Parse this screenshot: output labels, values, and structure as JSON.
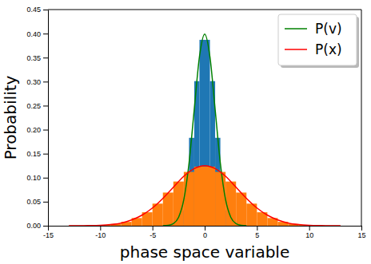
{
  "chart_data": {
    "type": "histogram",
    "xlabel": "phase space variable",
    "ylabel": "Probability",
    "xlim": [
      -15,
      15
    ],
    "ylim": [
      0,
      0.45
    ],
    "xticks": [
      -15,
      -10,
      -5,
      0,
      5,
      10,
      15
    ],
    "yticks": [
      {
        "value": 0,
        "label": "0.00"
      },
      {
        "value": 0.05,
        "label": "0.05"
      },
      {
        "value": 0.1,
        "label": "0.10"
      },
      {
        "value": 0.15,
        "label": "0.15"
      },
      {
        "value": 0.2,
        "label": "0.20"
      },
      {
        "value": 0.25,
        "label": "0.25"
      },
      {
        "value": 0.3,
        "label": "0.30"
      },
      {
        "value": 0.35,
        "label": "0.35"
      },
      {
        "value": 0.4,
        "label": "0.40"
      },
      {
        "value": 0.45,
        "label": "0.45"
      }
    ],
    "legend": "upper right",
    "series": [
      {
        "type": "histogram",
        "color": "#1f77b4",
        "bins": [
          -4,
          -3.5,
          -3,
          -2.5,
          -2,
          -1.5,
          -1,
          -0.5,
          0,
          0.5,
          1,
          1.5,
          2,
          2.5,
          3,
          3.5,
          4
        ],
        "values": [
          0.0004,
          0.002,
          0.009,
          0.032,
          0.086,
          0.183,
          0.301,
          0.387,
          0.387,
          0.301,
          0.183,
          0.086,
          0.032,
          0.009,
          0.002,
          0.0004
        ]
      },
      {
        "type": "histogram",
        "color": "#ff7f0e",
        "bins": [
          -13,
          -12,
          -11,
          -10,
          -9,
          -8,
          -7,
          -6,
          -5,
          -4,
          -3,
          -2,
          -1,
          0,
          1,
          2,
          3,
          4,
          5,
          6,
          7,
          8,
          9,
          10,
          11,
          12,
          13
        ],
        "values": [
          0.0001,
          0.0002,
          0.0006,
          0.0015,
          0.0037,
          0.008,
          0.016,
          0.028,
          0.046,
          0.069,
          0.092,
          0.112,
          0.123,
          0.123,
          0.112,
          0.092,
          0.069,
          0.046,
          0.028,
          0.016,
          0.008,
          0.0037,
          0.0015,
          0.0006,
          0.0002,
          0.0001
        ]
      },
      {
        "type": "line",
        "name": "P(v)",
        "color": "#008000",
        "x": [
          -4,
          -3.5,
          -3,
          -2.5,
          -2,
          -1.5,
          -1,
          -0.5,
          0,
          0.5,
          1,
          1.5,
          2,
          2.5,
          3,
          3.5,
          4
        ],
        "values": [
          0.0001,
          0.0009,
          0.0044,
          0.0175,
          0.054,
          0.13,
          0.242,
          0.352,
          0.399,
          0.352,
          0.242,
          0.13,
          0.054,
          0.0175,
          0.0044,
          0.0009,
          0.0001
        ]
      },
      {
        "type": "line",
        "name": "P(x)",
        "color": "#ff0000",
        "x": [
          -13,
          -12,
          -11,
          -10,
          -9,
          -8,
          -7,
          -6,
          -5,
          -4,
          -3,
          -2,
          -1,
          0,
          1,
          2,
          3,
          4,
          5,
          6,
          7,
          8,
          9,
          10,
          11,
          12,
          13
        ],
        "values": [
          0,
          0.0001,
          0.0003,
          0.0009,
          0.0024,
          0.0055,
          0.012,
          0.022,
          0.037,
          0.057,
          0.08,
          0.103,
          0.119,
          0.125,
          0.119,
          0.103,
          0.08,
          0.057,
          0.037,
          0.022,
          0.012,
          0.0055,
          0.0024,
          0.0009,
          0.0003,
          0.0001,
          0
        ]
      }
    ]
  }
}
